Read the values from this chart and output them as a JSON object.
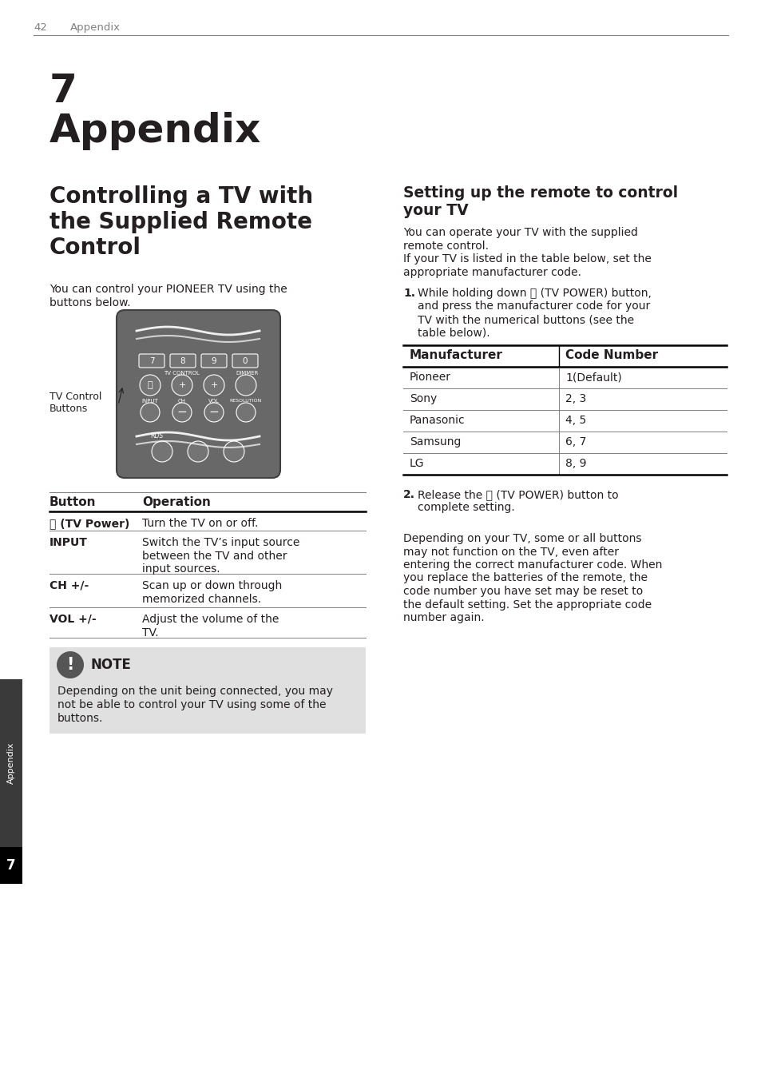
{
  "page_num": "42",
  "header_text": "Appendix",
  "chapter_num": "7",
  "chapter_title": "Appendix",
  "left_section_title_lines": [
    "Controlling a TV with",
    "the Supplied Remote",
    "Control"
  ],
  "right_section_title_lines": [
    "Setting up the remote to control",
    "your TV"
  ],
  "left_intro_lines": [
    "You can control your PIONEER TV using the",
    "buttons below."
  ],
  "right_intro_lines": [
    "You can operate your TV with the supplied",
    "remote control.",
    "If your TV is listed in the table below, set the",
    "appropriate manufacturer code."
  ],
  "step1_label": "1.",
  "step1_lines": [
    "While holding down ⏻ (TV POWER) button,",
    "and press the manufacturer code for your",
    "TV with the numerical buttons (see the",
    "table below)."
  ],
  "step2_label": "2.",
  "step2_lines": [
    "Release the ⏻ (TV POWER) button to",
    "complete setting."
  ],
  "table_headers": [
    "Manufacturer",
    "Code Number"
  ],
  "table_rows": [
    [
      "Pioneer",
      "1(Default)"
    ],
    [
      "Sony",
      "2, 3"
    ],
    [
      "Panasonic",
      "4, 5"
    ],
    [
      "Samsung",
      "6, 7"
    ],
    [
      "LG",
      "8, 9"
    ]
  ],
  "button_col_headers": [
    "Button",
    "Operation"
  ],
  "button_rows": [
    [
      "⏻ (TV Power)",
      "Turn the TV on or off."
    ],
    [
      "INPUT",
      "Switch the TV’s input source\nbetween the TV and other\ninput sources."
    ],
    [
      "CH +/-",
      "Scan up or down through\nmemorized channels."
    ],
    [
      "VOL +/-",
      "Adjust the volume of the\nTV."
    ]
  ],
  "tv_control_label": "TV Control\nButtons",
  "note_label": "NOTE",
  "note_lines": [
    "Depending on the unit being connected, you may",
    "not be able to control your TV using some of the",
    "buttons."
  ],
  "para_lines": [
    "Depending on your TV, some or all buttons",
    "may not function on the TV, even after",
    "entering the correct manufacturer code. When",
    "you replace the batteries of the remote, the",
    "code number you have set may be reset to",
    "the default setting. Set the appropriate code",
    "number again."
  ],
  "sidebar_text": "Appendix",
  "sidebar_num": "7",
  "bg_color": "#ffffff",
  "text_color": "#231f20",
  "gray_color": "#808080",
  "light_gray_bg": "#e0e0e0",
  "dark_gray": "#555555",
  "sidebar_bg": "#3a3a3a",
  "remote_body_color": "#686868",
  "remote_btn_color": "#7a7a7a"
}
